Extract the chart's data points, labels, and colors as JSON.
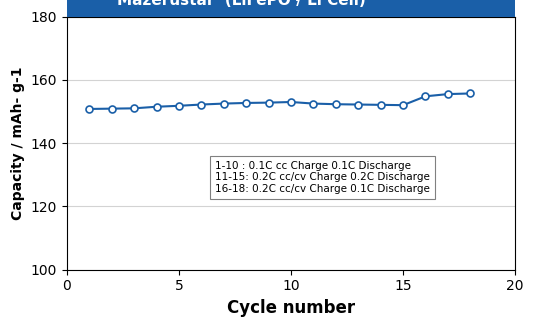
{
  "x": [
    1,
    2,
    3,
    4,
    5,
    6,
    7,
    8,
    9,
    10,
    11,
    12,
    13,
    14,
    15,
    16,
    17,
    18
  ],
  "y": [
    150.8,
    150.9,
    151.0,
    151.5,
    151.8,
    152.2,
    152.5,
    152.7,
    152.8,
    153.0,
    152.5,
    152.3,
    152.2,
    152.1,
    152.0,
    154.8,
    155.5,
    155.7
  ],
  "xlabel": "Cycle number",
  "ylabel": "Capacity / mAh- g-1",
  "xlim": [
    0,
    20
  ],
  "ylim": [
    100,
    180
  ],
  "yticks": [
    100,
    120,
    140,
    160,
    180
  ],
  "xticks": [
    0,
    5,
    10,
    15,
    20
  ],
  "line_color": "#1a5fa8",
  "marker": "o",
  "marker_facecolor": "white",
  "marker_edgecolor": "#1a5fa8",
  "title_bg_color": "#1a5fa8",
  "title_text_color": "white",
  "annotation_lines": [
    "1-10 : 0.1C cc Charge 0.1C Discharge",
    "11-15: 0.2C cc/cv Charge 0.2C Discharge",
    "16-18: 0.2C cc/cv Charge 0.1C Discharge"
  ]
}
